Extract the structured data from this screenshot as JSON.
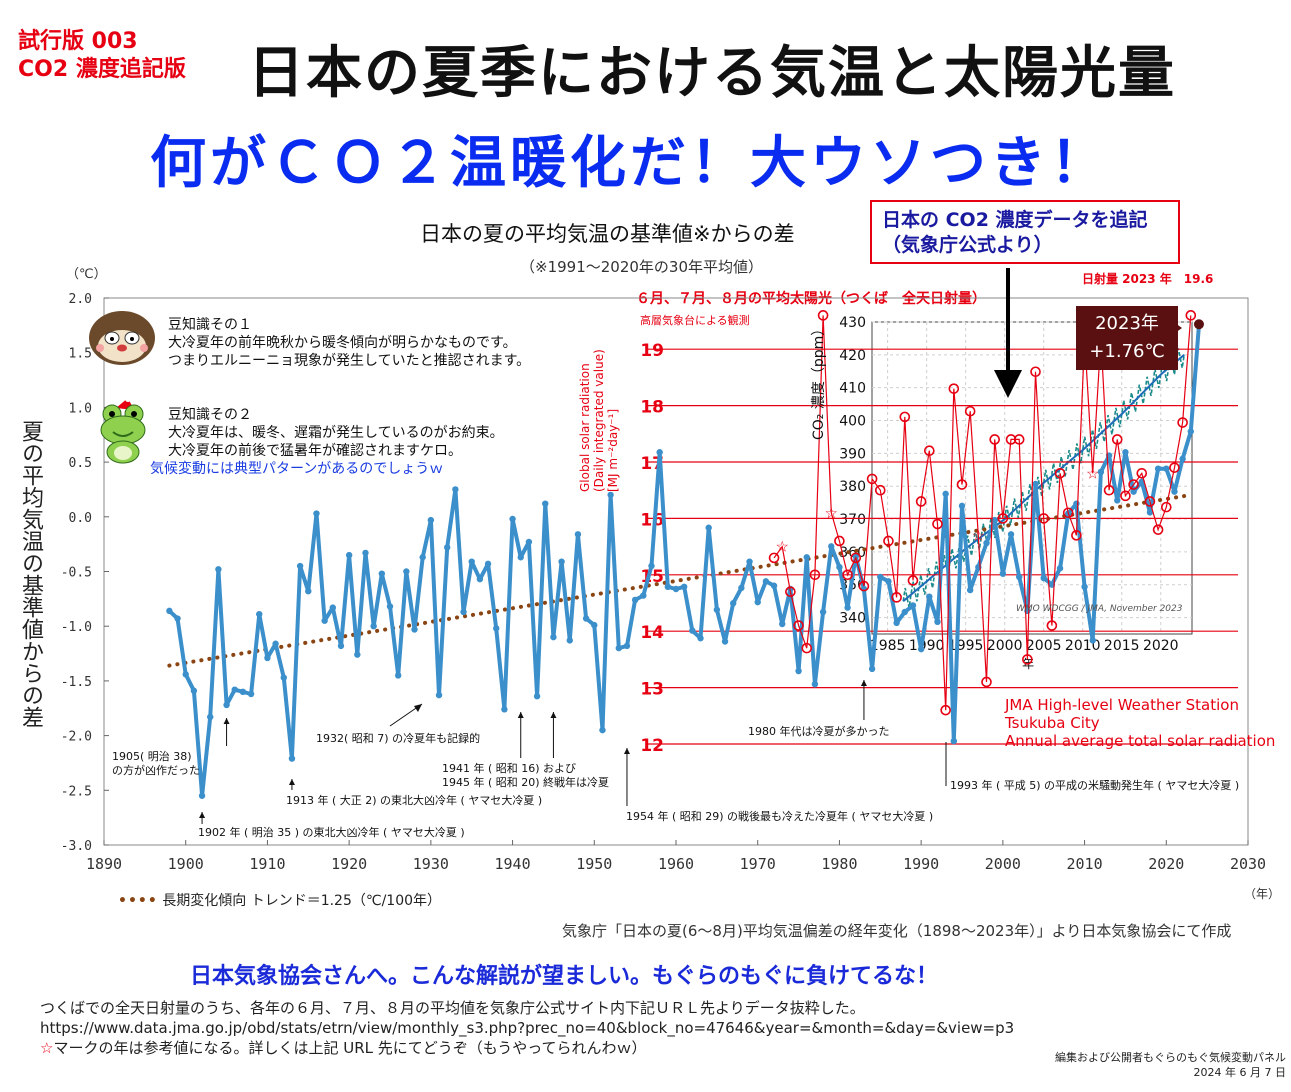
{
  "header": {
    "edition_line1": "試行版 003",
    "edition_line2": "CO2 濃度追記版",
    "title": "日本の夏季における気温と太陽光量",
    "subtitle": "何がＣＯ２温暖化だ！大ウソつき！"
  },
  "chart_title": "日本の夏の平均気温の基準値※からの差",
  "chart_note": "（※1991～2020年の30年平均値）",
  "callout": {
    "line1": "日本の CO2 濃度データを追記",
    "line2": "（気象庁公式より）"
  },
  "solar": {
    "title": "６月、７月、８月の平均太陽光（つくば　全天日射量）",
    "subtitle": "高層気象台による観測",
    "value_2023": "日射量 2023 年　19.6",
    "axis_title_1": "Global solar radiation",
    "axis_title_2": "(Daily integrated value)",
    "axis_title_3": "[MJ m⁻²day⁻¹]",
    "station_1": "JMA High-level Weather Station",
    "station_2": "Tsukuba City",
    "station_3": "Annual average total solar radiation"
  },
  "badge": {
    "year": "2023年",
    "value": "+1.76℃"
  },
  "co2_axis_title": "CO₂ 濃度（ppm）",
  "co2_credit": "WMO WDCGG / JMA, November 2023",
  "co2_year_unit": "年",
  "y_unit": "（℃）",
  "y_title": "夏の平均気温の基準値からの差",
  "year_unit": "（年）",
  "trivia": {
    "text": "豆知識その１\n大冷夏年の前年晩秋から暖冬傾向が明らかなものです。\nつまりエルニーニョ現象が発生していたと推認されます。\n\n\n豆知識その２\n大冷夏年は、暖冬、遅霜が発生しているのがお約束。\n大冷夏年の前後で猛暑年が確認されますケロ。",
    "blue": "気候変動には典型パターンがあるのでしょうｗ"
  },
  "annotations": {
    "a1902": "1902 年 ( 明治 35 ) の東北大凶冷年 ( ヤマセ大冷夏 )",
    "a1905_1": "1905( 明治 38)",
    "a1905_2": "の方が凶作だった",
    "a1913": "1913 年 ( 大正 2) の東北大凶冷年 ( ヤマセ大冷夏 )",
    "a1932": "1932( 昭和 7) の冷夏年も記録的",
    "a1941_1": "1941 年 ( 昭和 16) および",
    "a1941_2": "1945 年 ( 昭和 20) 終戦年は冷夏",
    "a1954": "1954 年 ( 昭和 29) の戦後最も冷えた冷夏年 ( ヤマセ大冷夏 )",
    "a1980": "1980 年代は冷夏が多かった",
    "a1993": "1993 年 ( 平成 5) の平成の米騒動発生年 ( ヤマセ大冷夏 )"
  },
  "legend": {
    "label": "長期変化傾向 トレンド＝1.25（℃/100年）"
  },
  "source": "気象庁「日本の夏(6～8月)平均気温偏差の経年変化（1898～2023年）」より日本気象協会にて作成",
  "cta": "日本気象協会さんへ。こんな解説が望ましい。もぐらのもぐに負けてるな！",
  "footer": {
    "line1": "つくばでの全天日射量のうち、各年の６月、７月、８月の平均値を気象庁公式サイト内下記ＵＲＬ先よりデータ抜粋した。",
    "line2": "https://www.data.jma.go.jp/obd/stats/etrn/view/monthly_s3.php?prec_no=40&block_no=47646&year=&month=&day=&view=p3",
    "line3_star": "☆",
    "line3": "マークの年は参考値になる。詳しくは上記 URL 先にてどうぞ（もうやってられんわｗ）"
  },
  "credit": {
    "line1": "編集および公開者もぐらのもぐ気候変動パネル",
    "line2": "2024 年 6 月 7 日"
  },
  "colors": {
    "temp_line": "#3b8fcb",
    "trend": "#8b4513",
    "solar": "#e60012",
    "co2": "#1a8a8a",
    "title_blue": "#0a2cf0"
  },
  "chart_data": [
    {
      "type": "line",
      "title": "日本の夏の平均気温の基準値※からの差",
      "ylabel": "夏の平均気温の基準値からの差",
      "xlim": [
        1890,
        2030
      ],
      "ylim": [
        -3.0,
        2.0
      ],
      "x_ticks": [
        1890,
        1900,
        1910,
        1920,
        1930,
        1940,
        1950,
        1960,
        1970,
        1980,
        1990,
        2000,
        2010,
        2020,
        2030
      ],
      "y_ticks": [
        2.0,
        1.5,
        1.0,
        0.5,
        0.0,
        -0.5,
        -1.0,
        -1.5,
        -2.0,
        -2.5,
        -3.0
      ],
      "y_tick_labels": [
        "2.0",
        "1.5",
        "1.0",
        "0.5",
        "0.0",
        "-0.5",
        "-1.0",
        "-1.5",
        "-2.0",
        "-2.5",
        "-3.0"
      ],
      "trend": {
        "name": "長期変化傾向",
        "rate_per_100y": 1.25,
        "start": [
          1898,
          -1.36
        ],
        "end": [
          2023,
          0.2
        ]
      },
      "x_start": 1898,
      "values": [
        -0.86,
        -0.93,
        -1.44,
        -1.59,
        -2.55,
        -1.83,
        -0.48,
        -1.72,
        -1.58,
        -1.6,
        -1.62,
        -0.89,
        -1.29,
        -1.16,
        -1.47,
        -2.21,
        -0.45,
        -0.68,
        0.03,
        -0.95,
        -0.83,
        -1.18,
        -0.35,
        -1.26,
        -0.33,
        -1.0,
        -0.52,
        -0.82,
        -1.45,
        -0.5,
        -1.03,
        -0.37,
        -0.03,
        -1.63,
        -0.28,
        0.25,
        -0.87,
        -0.41,
        -0.57,
        -0.43,
        -1.02,
        -1.76,
        -0.02,
        -0.37,
        -0.23,
        -1.64,
        0.12,
        -1.1,
        -0.41,
        -1.13,
        -0.16,
        -0.93,
        -0.99,
        -1.95,
        0.2,
        -1.2,
        -1.18,
        -0.76,
        -0.72,
        -0.45,
        0.59,
        -0.64,
        -0.66,
        -0.64,
        -1.04,
        -1.11,
        -0.1,
        -0.85,
        -1.14,
        -0.79,
        -0.65,
        -0.41,
        -0.78,
        -0.59,
        -0.63,
        -0.98,
        -0.66,
        -1.41,
        -0.37,
        -1.53,
        -0.87,
        -0.27,
        -0.46,
        -0.83,
        -0.36,
        -0.66,
        -1.39,
        -0.55,
        -0.59,
        -0.97,
        -0.87,
        -0.81,
        -1.21,
        -0.73,
        -0.96,
        0.21,
        -2.05,
        0.1,
        -0.67,
        -0.46,
        -0.24,
        -0.03,
        -0.52,
        -0.16,
        -0.55,
        -0.86,
        0.3,
        -0.56,
        -0.62,
        -0.47,
        0.03,
        0.12,
        -0.64,
        -1.13,
        0.41,
        0.56,
        0.15,
        0.59,
        0.23,
        0.32,
        0.04,
        0.44,
        0.44,
        0.23,
        0.53,
        0.78,
        1.76
      ]
    },
    {
      "type": "line",
      "title": "６月、７月、８月の平均太陽光（つくば　全天日射量）",
      "ylabel": "Global solar radiation (Daily integrated value) [MJ m⁻²day⁻¹]",
      "y_ticks": [
        12,
        13,
        14,
        15,
        16,
        17,
        18,
        19
      ],
      "x": [
        1972,
        1973,
        1974,
        1975,
        1976,
        1977,
        1978,
        1979,
        1980,
        1981,
        1982,
        1983,
        1984,
        1985,
        1986,
        1987,
        1988,
        1989,
        1990,
        1991,
        1992,
        1993,
        1994,
        1995,
        1996,
        1997,
        1998,
        1999,
        2000,
        2001,
        2002,
        2003,
        2004,
        2005,
        2006,
        2007,
        2008,
        2009,
        2010,
        2011,
        2012,
        2013,
        2014,
        2015,
        2016,
        2017,
        2018,
        2019,
        2020,
        2021,
        2022,
        2023
      ],
      "values": [
        15.3,
        15.5,
        14.7,
        14.1,
        13.7,
        15.0,
        19.6,
        16.1,
        15.6,
        15.0,
        15.3,
        14.8,
        16.7,
        16.5,
        15.6,
        14.6,
        17.8,
        14.9,
        16.3,
        17.2,
        15.9,
        12.6,
        18.3,
        16.6,
        17.9,
        15.7,
        13.1,
        17.4,
        16.0,
        17.4,
        17.4,
        13.5,
        18.6,
        16.0,
        14.1,
        16.8,
        16.1,
        15.7,
        19.2,
        16.8,
        19.2,
        16.5,
        17.4,
        16.4,
        16.6,
        16.8,
        16.3,
        15.8,
        16.2,
        16.9,
        17.7,
        19.6
      ],
      "reference_years_star": [
        1973,
        1979,
        1997,
        2011
      ]
    },
    {
      "type": "line",
      "title": "日本の CO2 濃度データを追記",
      "ylabel": "CO₂ 濃度（ppm）",
      "xlim": [
        1983,
        2024
      ],
      "ylim": [
        335,
        430
      ],
      "x_ticks": [
        1985,
        1990,
        1995,
        2000,
        2005,
        2010,
        2015,
        2020
      ],
      "y_ticks": [
        340,
        350,
        360,
        370,
        380,
        390,
        400,
        410,
        420,
        430
      ],
      "x": [
        1987,
        1990,
        1995,
        2000,
        2005,
        2010,
        2015,
        2020,
        2023
      ],
      "values": [
        345,
        351,
        361,
        370,
        381,
        391,
        402,
        414,
        420
      ]
    }
  ]
}
